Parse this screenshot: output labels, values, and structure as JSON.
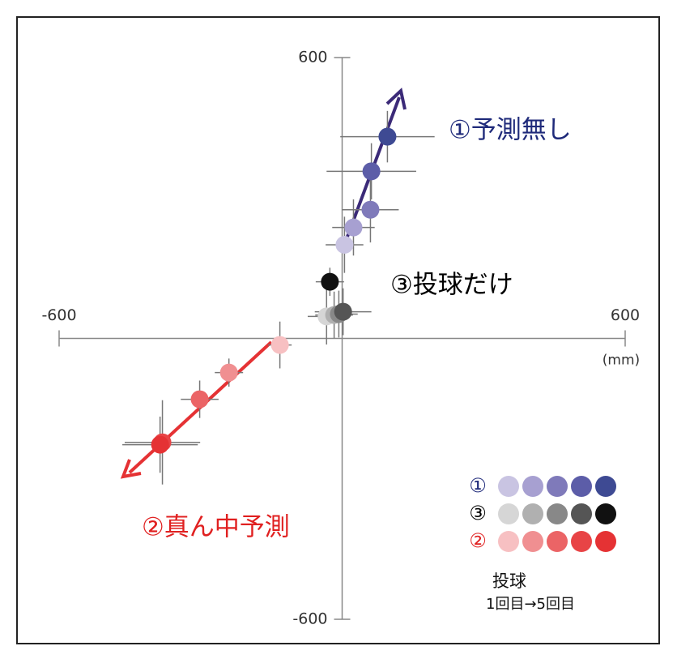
{
  "chart_data": {
    "type": "scatter",
    "xlim": [
      -600,
      600
    ],
    "ylim": [
      -600,
      600
    ],
    "xticks": [
      -600,
      600
    ],
    "yticks": [
      -600,
      600
    ],
    "x_unit": "(mm)",
    "series": [
      {
        "name": "①",
        "label_color": "#1f2a7a",
        "colors": [
          "#c9c4e2",
          "#a7a0d1",
          "#7f7aba",
          "#5c5da8",
          "#3e4a93"
        ],
        "x": [
          5,
          24,
          60,
          62,
          96
        ],
        "y": [
          200,
          237,
          275,
          357,
          431
        ],
        "xerr": [
          40,
          45,
          60,
          95,
          100
        ],
        "yerr": [
          60,
          60,
          70,
          60,
          55
        ]
      },
      {
        "name": "③",
        "label_color": "#000000",
        "colors": [
          "#d6d6d6",
          "#b0b0b0",
          "#888888",
          "#555555",
          "#111111"
        ],
        "x": [
          -33,
          -17,
          -7,
          2,
          -26
        ],
        "y": [
          47,
          50,
          52,
          57,
          121
        ],
        "xerr": [
          40,
          40,
          40,
          60,
          30
        ],
        "yerr": [
          60,
          50,
          50,
          50,
          30
        ]
      },
      {
        "name": "②",
        "label_color": "#e02020",
        "colors": [
          "#f7c0c2",
          "#f08f91",
          "#eb6466",
          "#e84446",
          "#e53234"
        ],
        "x": [
          -132,
          -240,
          -302,
          -381,
          -386
        ],
        "y": [
          -14,
          -73,
          -130,
          -222,
          -227
        ],
        "xerr": [
          25,
          30,
          40,
          80,
          80
        ],
        "yerr": [
          50,
          30,
          40,
          90,
          60
        ]
      }
    ],
    "annotations": [
      {
        "text": "①予測無し",
        "color": "#1f2a7a"
      },
      {
        "text": "③投球だけ",
        "color": "#000000"
      },
      {
        "text": "②真ん中予測",
        "color": "#e02020"
      }
    ],
    "legend_title": [
      "投球",
      "1回目→5回目"
    ]
  }
}
